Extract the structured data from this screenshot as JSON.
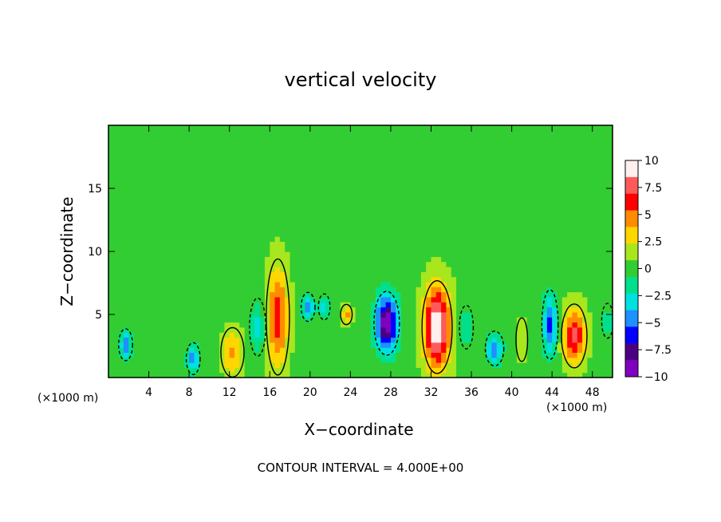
{
  "chart_data": {
    "type": "heatmap",
    "title": "vertical velocity",
    "xlabel": "X−coordinate",
    "ylabel": "Z−coordinate",
    "x_unit_note": "(×1000 m)",
    "footer_note": "CONTOUR INTERVAL = 4.000E+00",
    "xlim": [
      0,
      50
    ],
    "ylim": [
      0,
      20
    ],
    "x_ticks": [
      4,
      8,
      12,
      16,
      20,
      24,
      28,
      32,
      36,
      40,
      44,
      48
    ],
    "x_tick_labels": [
      "4",
      "8",
      "12",
      "16",
      "20",
      "24",
      "28",
      "32",
      "36",
      "40",
      "44",
      "48"
    ],
    "y_ticks": [
      5,
      10,
      15
    ],
    "y_tick_labels": [
      "5",
      "10",
      "15"
    ],
    "colorbar": {
      "min": -10,
      "max": 10,
      "ticks": [
        10,
        7.5,
        5,
        2.5,
        0,
        -2.5,
        -5,
        -7.5,
        -10
      ],
      "tick_labels": [
        "10",
        "7.5",
        "5",
        "2.5",
        "0",
        "−2.5",
        "−5",
        "−7.5",
        "−10"
      ],
      "colors": [
        "#fff0f0",
        "#ff5a5a",
        "#ff0000",
        "#ff8c00",
        "#ffd700",
        "#a8e61e",
        "#32cd32",
        "#00e08c",
        "#00e0e0",
        "#1e90ff",
        "#0000ff",
        "#4b0082",
        "#8000c0"
      ]
    },
    "background_value": 0.3,
    "features": [
      {
        "x": 32.6,
        "z": 4.0,
        "value": 10,
        "rx": 1.3,
        "rz": 3.2
      },
      {
        "x": 46.2,
        "z": 3.3,
        "value": 7,
        "rx": 1.1,
        "rz": 2.2
      },
      {
        "x": 16.8,
        "z": 4.8,
        "value": 6,
        "rx": 1.0,
        "rz": 4.0
      },
      {
        "x": 12.3,
        "z": 2.0,
        "value": 4,
        "rx": 1.0,
        "rz": 1.7
      },
      {
        "x": 23.6,
        "z": 5.0,
        "value": 4,
        "rx": 0.5,
        "rz": 0.7
      },
      {
        "x": 27.6,
        "z": 4.3,
        "value": -10,
        "rx": 1.1,
        "rz": 2.2
      },
      {
        "x": 43.8,
        "z": 4.2,
        "value": -6,
        "rx": 0.7,
        "rz": 2.4
      },
      {
        "x": 38.3,
        "z": 2.3,
        "value": -5,
        "rx": 0.8,
        "rz": 1.2
      },
      {
        "x": 1.7,
        "z": 2.6,
        "value": -5,
        "rx": 0.6,
        "rz": 1.1
      },
      {
        "x": 8.4,
        "z": 1.5,
        "value": -5,
        "rx": 0.6,
        "rz": 1.1
      },
      {
        "x": 19.8,
        "z": 5.6,
        "value": -5,
        "rx": 0.6,
        "rz": 1.0
      },
      {
        "x": 21.4,
        "z": 5.6,
        "value": -4,
        "rx": 0.5,
        "rz": 0.9
      },
      {
        "x": 14.8,
        "z": 4.0,
        "value": -3,
        "rx": 0.7,
        "rz": 2.0
      },
      {
        "x": 35.5,
        "z": 4.0,
        "value": -3,
        "rx": 0.6,
        "rz": 1.5
      },
      {
        "x": 41.0,
        "z": 3.0,
        "value": 2,
        "rx": 0.5,
        "rz": 1.5
      },
      {
        "x": 49.5,
        "z": 4.5,
        "value": -2,
        "rx": 0.5,
        "rz": 1.2
      }
    ]
  }
}
